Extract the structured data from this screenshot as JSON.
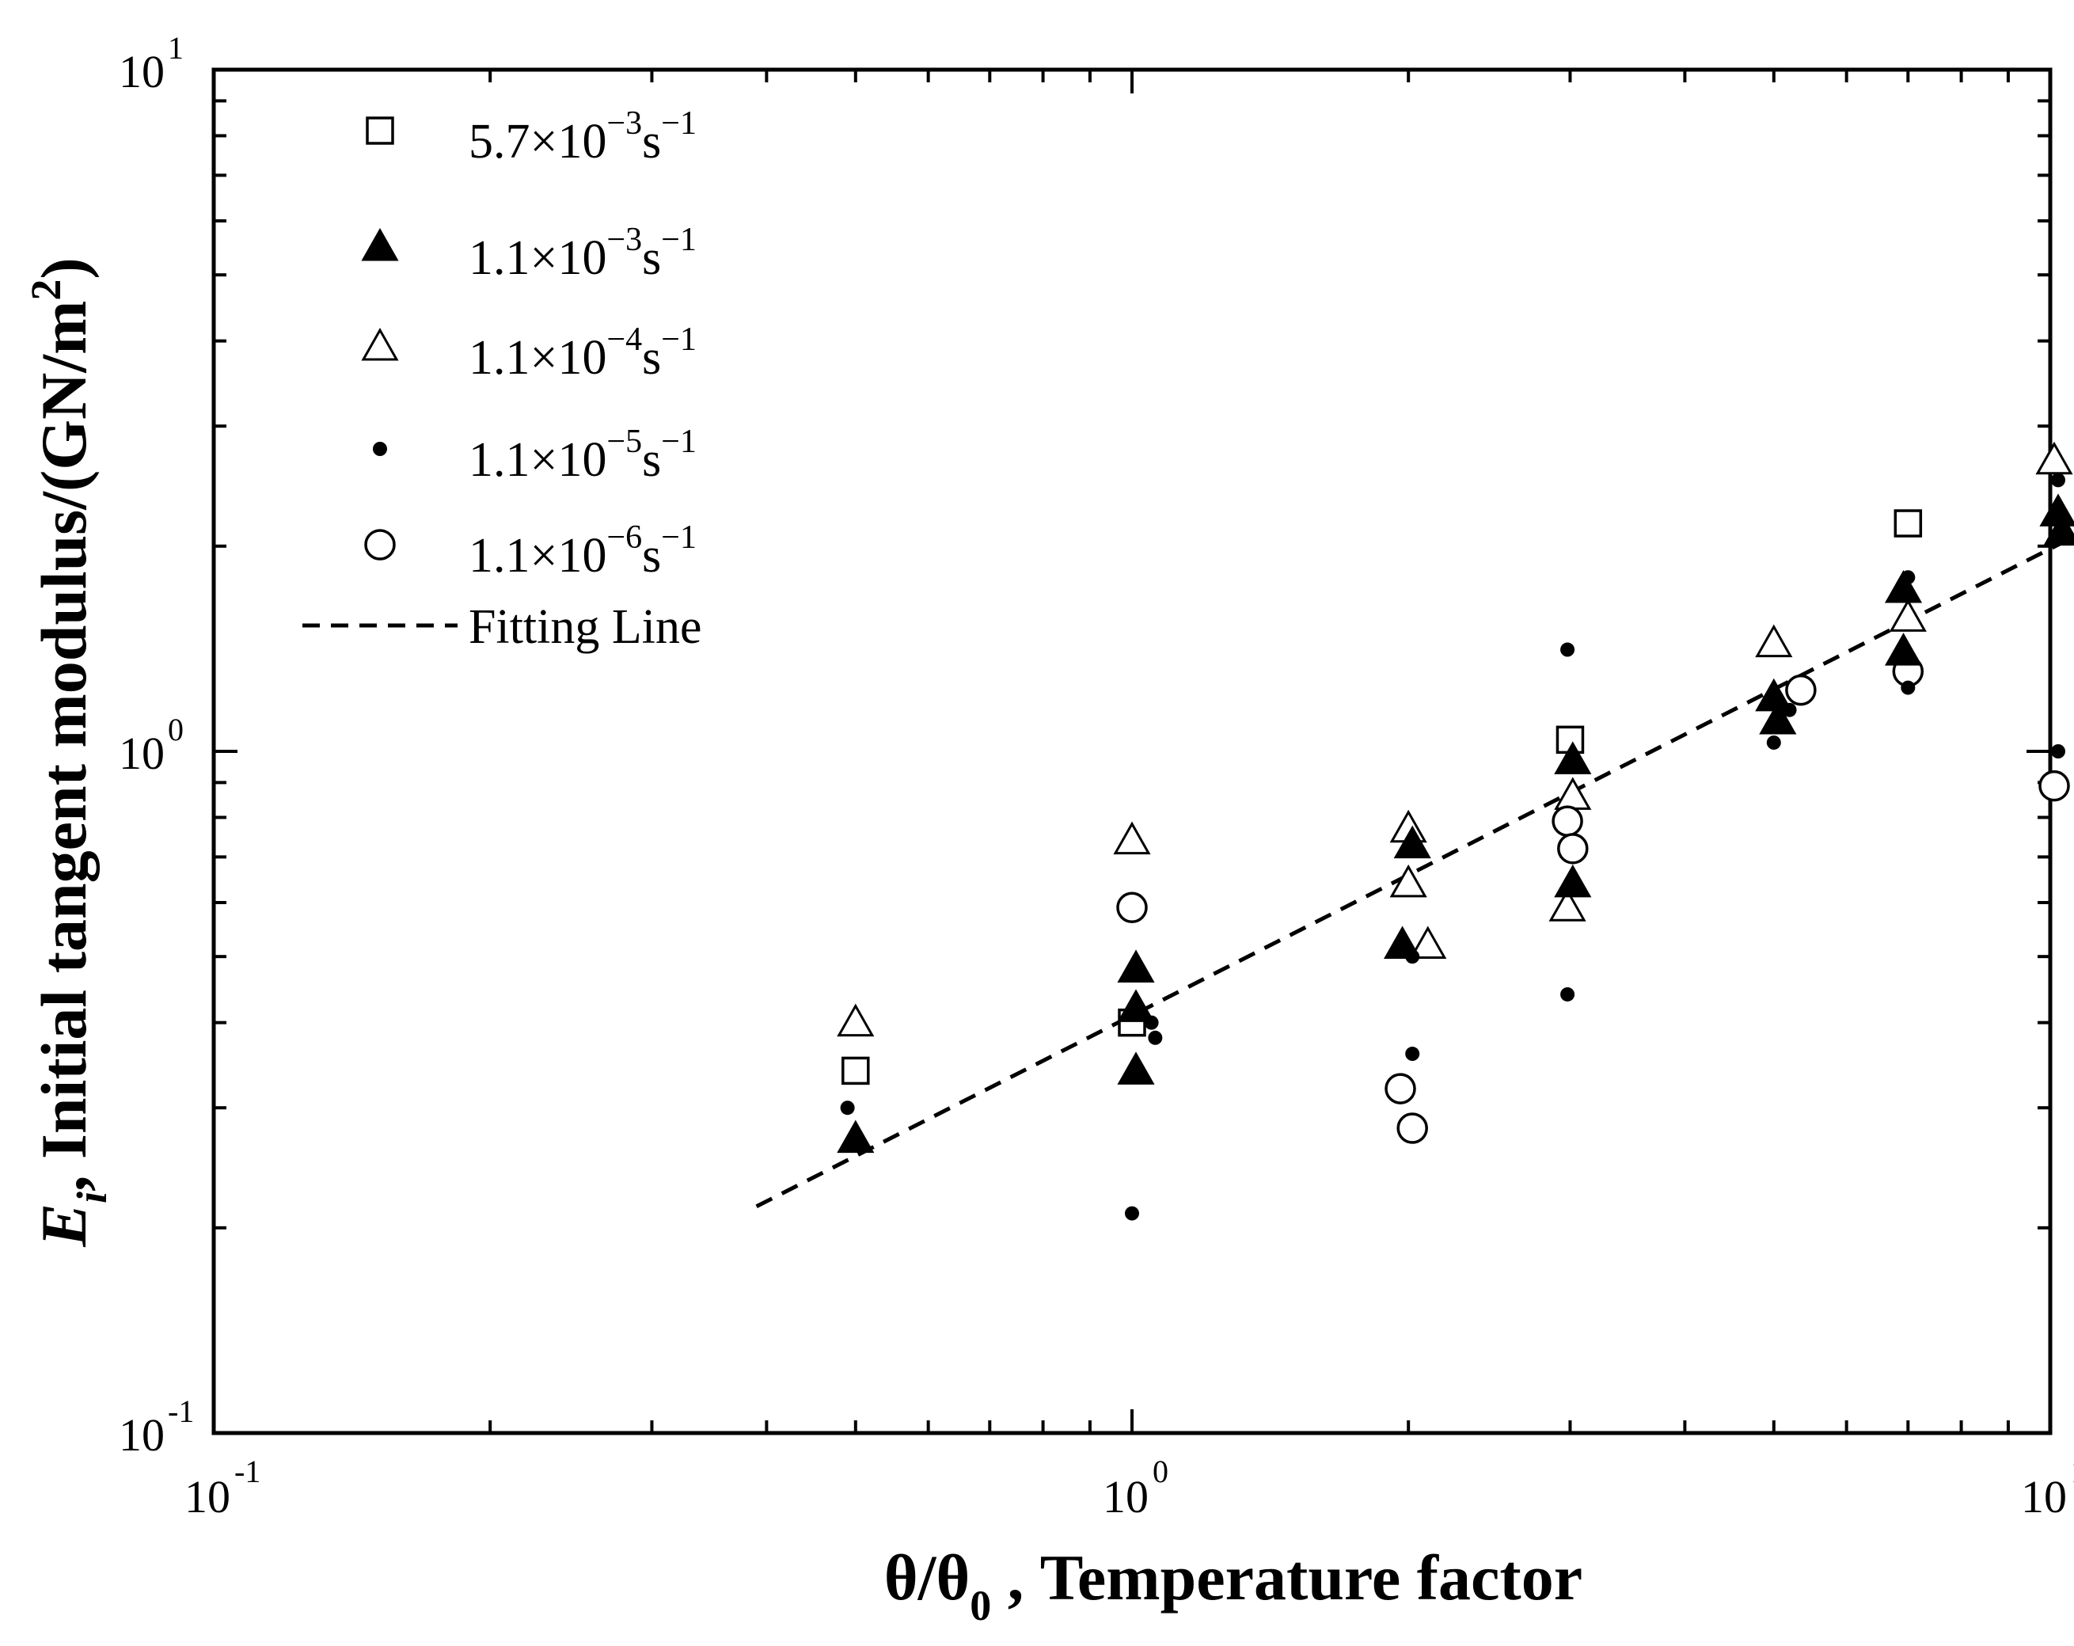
{
  "chart_data": {
    "type": "scatter",
    "title": "",
    "xscale": "log",
    "yscale": "log",
    "xlim": [
      0.1,
      10
    ],
    "ylim": [
      0.1,
      10
    ],
    "x_ticks": [
      {
        "value": 0.1,
        "base": "10",
        "exp": "-1"
      },
      {
        "value": 1,
        "base": "10",
        "exp": "0"
      },
      {
        "value": 10,
        "base": "10",
        "exp": "1"
      }
    ],
    "y_ticks": [
      {
        "value": 0.1,
        "base": "10",
        "exp": "-1"
      },
      {
        "value": 1,
        "base": "10",
        "exp": "0"
      },
      {
        "value": 10,
        "base": "10",
        "exp": "1"
      }
    ],
    "xlabel": {
      "main": "θ/θ",
      "sub": "0",
      "rest": " , Temperature factor"
    },
    "ylabel": {
      "symbol": "E",
      "sub": "i",
      "rest": ", Initial tangent modulus/(GN/m",
      "sup": "2",
      "close": ")"
    },
    "legend_position": "top-left",
    "series": [
      {
        "name": "5.7×10-3s-1",
        "label": {
          "mant": "5.7×10",
          "exp1": "−3",
          "unit": "s",
          "exp2": "−1"
        },
        "marker": "open-square",
        "points": [
          [
            0.5,
            0.34
          ],
          [
            1.0,
            0.4
          ],
          [
            3.0,
            1.04
          ],
          [
            7.0,
            2.16
          ]
        ]
      },
      {
        "name": "1.1×10-3s-1",
        "label": {
          "mant": "1.1×10",
          "exp1": "−3",
          "unit": "s",
          "exp2": "−1"
        },
        "marker": "filled-triangle",
        "points": [
          [
            0.5,
            0.27
          ],
          [
            1.01,
            0.48
          ],
          [
            1.01,
            0.42
          ],
          [
            1.01,
            0.34
          ],
          [
            1.97,
            0.52
          ],
          [
            2.02,
            0.73
          ],
          [
            3.02,
            0.97
          ],
          [
            3.02,
            0.64
          ],
          [
            5.0,
            1.2
          ],
          [
            5.05,
            1.11
          ],
          [
            6.92,
            1.73
          ],
          [
            6.92,
            1.4
          ],
          [
            10.2,
            2.24
          ],
          [
            10.3,
            2.1
          ]
        ]
      },
      {
        "name": "1.1×10-4s-1",
        "label": {
          "mant": "1.1×10",
          "exp1": "−4",
          "unit": "s",
          "exp2": "−1"
        },
        "marker": "open-triangle",
        "points": [
          [
            0.5,
            0.4
          ],
          [
            1.0,
            0.74
          ],
          [
            2.0,
            0.77
          ],
          [
            2.0,
            0.64
          ],
          [
            2.1,
            0.52
          ],
          [
            2.98,
            0.59
          ],
          [
            3.02,
            0.86
          ],
          [
            5.0,
            1.44
          ],
          [
            7.0,
            1.57
          ],
          [
            10.1,
            2.67
          ]
        ]
      },
      {
        "name": "1.1×10-5s-1",
        "label": {
          "mant": "1.1×10",
          "exp1": "−5",
          "unit": "s",
          "exp2": "−1"
        },
        "marker": "filled-circle",
        "points": [
          [
            0.49,
            0.3
          ],
          [
            1.0,
            0.21
          ],
          [
            1.05,
            0.4
          ],
          [
            1.06,
            0.38
          ],
          [
            2.02,
            0.5
          ],
          [
            2.02,
            0.36
          ],
          [
            2.98,
            1.41
          ],
          [
            2.98,
            0.44
          ],
          [
            5.0,
            1.03
          ],
          [
            5.2,
            1.15
          ],
          [
            7.0,
            1.8
          ],
          [
            7.0,
            1.24
          ],
          [
            10.2,
            2.5
          ],
          [
            10.2,
            1.0
          ]
        ]
      },
      {
        "name": "1.1×10-6s-1",
        "label": {
          "mant": "1.1×10",
          "exp1": "−6",
          "unit": "s",
          "exp2": "−1"
        },
        "marker": "open-circle",
        "points": [
          [
            1.0,
            0.59
          ],
          [
            1.96,
            0.32
          ],
          [
            2.02,
            0.28
          ],
          [
            2.98,
            0.79
          ],
          [
            3.02,
            0.72
          ],
          [
            5.35,
            1.23
          ],
          [
            7.0,
            1.31
          ],
          [
            10.1,
            0.89
          ]
        ]
      }
    ],
    "fit_line": {
      "name": "Fitting Line",
      "x": [
        0.39,
        10.5
      ],
      "y": [
        0.215,
        2.05
      ]
    }
  }
}
